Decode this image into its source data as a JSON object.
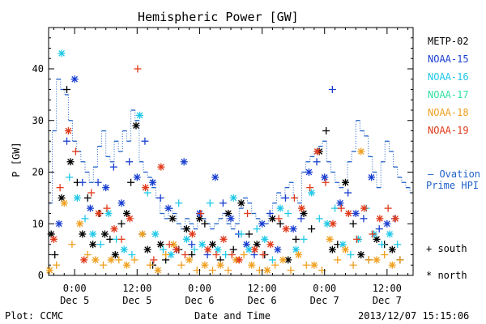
{
  "header": {
    "title": "Hemispheric Power [GW]"
  },
  "footer": {
    "plot_credit": "Plot: CCMC",
    "xlabel": "Date and Time",
    "timestamp": "2013/12/07 15:15:06"
  },
  "legend": {
    "satellites": [
      {
        "name": "METP-02",
        "color": "#000000"
      },
      {
        "name": "NOAA-15",
        "color": "#1a3fd0"
      },
      {
        "name": "NOAA-16",
        "color": "#20c8e8"
      },
      {
        "name": "NOAA-17",
        "color": "#30e0a0"
      },
      {
        "name": "NOAA-18",
        "color": "#f0a020"
      },
      {
        "name": "NOAA-19",
        "color": "#e03a1a"
      }
    ],
    "ovation_dash": "– Ovation",
    "ovation_line2": "Prime HPI",
    "ovation_color": "#2060c8",
    "south_label": "+ south",
    "north_label": "* north"
  },
  "chart_data": {
    "type": "scatter",
    "title": "Hemispheric Power [GW]",
    "xlabel": "Date and Time",
    "ylabel": "P [GW]",
    "x_unit": "hours since 2013-12-05 00:00 UT",
    "xlim": [
      -5,
      65
    ],
    "ylim": [
      0,
      48
    ],
    "yticks": [
      0,
      10,
      20,
      30,
      40
    ],
    "xticks": [
      {
        "x": 0,
        "time": "0:00",
        "date": "Dec 5"
      },
      {
        "x": 12,
        "time": "12:00",
        "date": "Dec 5"
      },
      {
        "x": 24,
        "time": "0:00",
        "date": "Dec 6"
      },
      {
        "x": 36,
        "time": "12:00",
        "date": "Dec 6"
      },
      {
        "x": 48,
        "time": "0:00",
        "date": "Dec 7"
      },
      {
        "x": 60,
        "time": "12:00",
        "date": "Dec 7"
      }
    ],
    "ovation_hpi": {
      "name": "Ovation Prime HPI",
      "style": "stepped dotted with dashed plateaus",
      "x": [
        -5,
        -4.3,
        -3.5,
        -2.7,
        -1.9,
        -1.2,
        -0.4,
        0.4,
        1.2,
        2,
        2.8,
        3.6,
        4.4,
        5.2,
        6,
        6.8,
        7.6,
        8.4,
        9.2,
        10,
        10.8,
        11.6,
        12.4,
        13.2,
        14,
        14.8,
        15.6,
        16.4,
        17.2,
        18,
        18.8,
        19.6,
        20.4,
        21.2,
        22,
        22.8,
        23.6,
        24.4,
        25.2,
        26,
        26.8,
        27.6,
        28.4,
        29.2,
        30,
        30.8,
        31.6,
        32.4,
        33.2,
        34,
        34.8,
        35.6,
        36.4,
        37.2,
        38,
        38.8,
        39.6,
        40.4,
        41.2,
        42,
        42.8,
        43.6,
        44.4,
        45.2,
        46,
        46.8,
        47.6,
        48.4,
        49.2,
        50,
        50.8,
        51.6,
        52.4,
        53.2,
        54,
        54.8,
        55.6,
        56.4,
        57.2,
        58,
        58.8,
        59.6,
        60.4,
        61.2,
        62,
        62.8,
        63.6,
        64.4
      ],
      "y": [
        14,
        28,
        38,
        36,
        35,
        30,
        26,
        24,
        22,
        20,
        18,
        21,
        25,
        28,
        23,
        22,
        26,
        24,
        28,
        26,
        32,
        30,
        22,
        20,
        19,
        17,
        15,
        12,
        11,
        13,
        12,
        10,
        9,
        11,
        10,
        9,
        12,
        11,
        10,
        9,
        10,
        11,
        12,
        10,
        9,
        10,
        13,
        15,
        14,
        12,
        11,
        10,
        10,
        12,
        14,
        16,
        15,
        17,
        18,
        15,
        14,
        20,
        22,
        23,
        24,
        25,
        26,
        22,
        20,
        18,
        17,
        18,
        22,
        24,
        30,
        28,
        27,
        23,
        20,
        17,
        22,
        26,
        24,
        21,
        19,
        18,
        17,
        16
      ]
    },
    "series": [
      {
        "name": "METP-02",
        "marker": "mixed",
        "x": [
          -4.5,
          -3.8,
          -2.5,
          -1.5,
          -0.8,
          0.5,
          1.5,
          2.5,
          3.5,
          4.8,
          5.8,
          6.8,
          7.8,
          9,
          10,
          10.8,
          11.8,
          13,
          14,
          15,
          16.5,
          17.5,
          18.8,
          20,
          21.5,
          22.5,
          24,
          25,
          26.5,
          28,
          29.5,
          30.5,
          32,
          33.5,
          35,
          36.5,
          38,
          39.5,
          41,
          42.5,
          44,
          45.5,
          47,
          48.3,
          49.5,
          50.5,
          52,
          53.5,
          55,
          56.5,
          58,
          59.5,
          61,
          62.5
        ],
        "y": [
          8,
          4,
          15,
          36,
          22,
          18,
          8,
          15,
          6,
          12,
          8,
          7,
          4,
          10,
          12,
          18,
          29,
          8,
          5,
          2,
          6,
          3,
          11,
          5,
          9,
          4,
          11,
          10,
          6,
          3,
          12,
          5,
          14,
          8,
          6,
          4,
          11,
          10,
          3,
          7,
          12,
          9,
          24,
          28,
          5,
          6,
          18,
          10,
          4,
          3,
          7,
          6,
          5,
          3
        ]
      },
      {
        "name": "NOAA-15",
        "marker": "mixed",
        "x": [
          -3,
          -1.5,
          0,
          1.5,
          3,
          4.5,
          6,
          7.5,
          9,
          10.5,
          12,
          13.5,
          15,
          16.5,
          18,
          19.5,
          21,
          22.5,
          24,
          25.5,
          27,
          28.5,
          30,
          31.5,
          33,
          34.5,
          36,
          37.5,
          39,
          40.5,
          42,
          43.5,
          45,
          46.5,
          48,
          49.5,
          51,
          52.5,
          54,
          55.5,
          57,
          58.5,
          60,
          61.5
        ],
        "y": [
          10,
          26,
          38,
          18,
          13,
          18,
          17,
          21,
          14,
          22,
          19,
          26,
          18,
          15,
          13,
          5,
          22,
          6,
          12,
          4,
          19,
          14,
          11,
          8,
          6,
          4,
          10,
          12,
          5,
          15,
          9,
          11,
          20,
          22,
          19,
          36,
          14,
          16,
          12,
          11,
          19,
          9,
          10,
          11
        ]
      },
      {
        "name": "NOAA-16",
        "marker": "mixed",
        "x": [
          -2.5,
          -1,
          0.5,
          2,
          3.5,
          5,
          6.5,
          8,
          9.5,
          11,
          12.5,
          14,
          15.5,
          17,
          18.5,
          20,
          21.5,
          23,
          24.5,
          26,
          27.5,
          29,
          30.5,
          32,
          33.5,
          35,
          36.5,
          38,
          39.5,
          41,
          42.5,
          44,
          45.5,
          47,
          48.5,
          50,
          51.5,
          53,
          54.5,
          56,
          57.5,
          59,
          60.5,
          62
        ],
        "y": [
          43,
          19,
          15,
          11,
          8,
          6,
          12,
          7,
          5,
          4,
          31,
          16,
          8,
          5,
          4,
          14,
          7,
          5,
          6,
          14,
          5,
          4,
          15,
          8,
          5,
          9,
          7,
          3,
          13,
          12,
          5,
          7,
          16,
          11,
          10,
          13,
          6,
          4,
          7,
          13,
          8,
          6,
          8,
          6
        ]
      },
      {
        "name": "NOAA-18",
        "marker": "mixed",
        "x": [
          -4.8,
          -3.5,
          -2,
          -0.5,
          1,
          2.5,
          4,
          5.5,
          7,
          8.5,
          10,
          11.5,
          13,
          14.5,
          16,
          17.5,
          19,
          20.5,
          22,
          23.5,
          25,
          26.5,
          28,
          29.5,
          31,
          32.5,
          34,
          35.5,
          37,
          38.5,
          40,
          41.5,
          43,
          44.5,
          46,
          47.5,
          49,
          50.5,
          52,
          53.5,
          55,
          56.5,
          58,
          59.5,
          61,
          62.5
        ],
        "y": [
          1,
          2,
          14,
          6,
          10,
          4,
          3,
          2,
          3,
          3,
          2,
          3,
          8,
          2,
          1,
          4,
          6,
          2,
          3,
          1,
          2,
          1,
          2,
          1,
          3,
          4,
          2,
          1,
          1,
          2,
          3,
          1,
          4,
          2,
          2,
          1,
          7,
          3,
          5,
          2,
          24,
          3,
          3,
          4,
          2,
          3
        ]
      },
      {
        "name": "NOAA-19",
        "marker": "mixed",
        "x": [
          -4,
          -2.8,
          -1.2,
          0.2,
          1.8,
          3.2,
          4.6,
          6.2,
          7.6,
          9,
          10.6,
          12.1,
          13.6,
          15.2,
          16.6,
          18.2,
          19.6,
          21.2,
          22.6,
          24.2,
          25.6,
          27.2,
          28.6,
          30.2,
          31.6,
          33.2,
          34.6,
          36.2,
          37.6,
          39.2,
          40.6,
          42.2,
          43.6,
          45.2,
          46.6,
          48.2,
          49.6,
          51.2,
          52.6,
          54.2,
          55.6,
          57.2,
          58.6,
          60.2,
          61.6
        ],
        "y": [
          7,
          17,
          28,
          24,
          3,
          16,
          12,
          13,
          9,
          7,
          11,
          40,
          17,
          3,
          21,
          6,
          5,
          4,
          8,
          12,
          5,
          4,
          7,
          4,
          3,
          12,
          5,
          4,
          6,
          11,
          9,
          15,
          13,
          17,
          24,
          18,
          10,
          13,
          12,
          7,
          13,
          8,
          11,
          13,
          11
        ]
      }
    ]
  }
}
